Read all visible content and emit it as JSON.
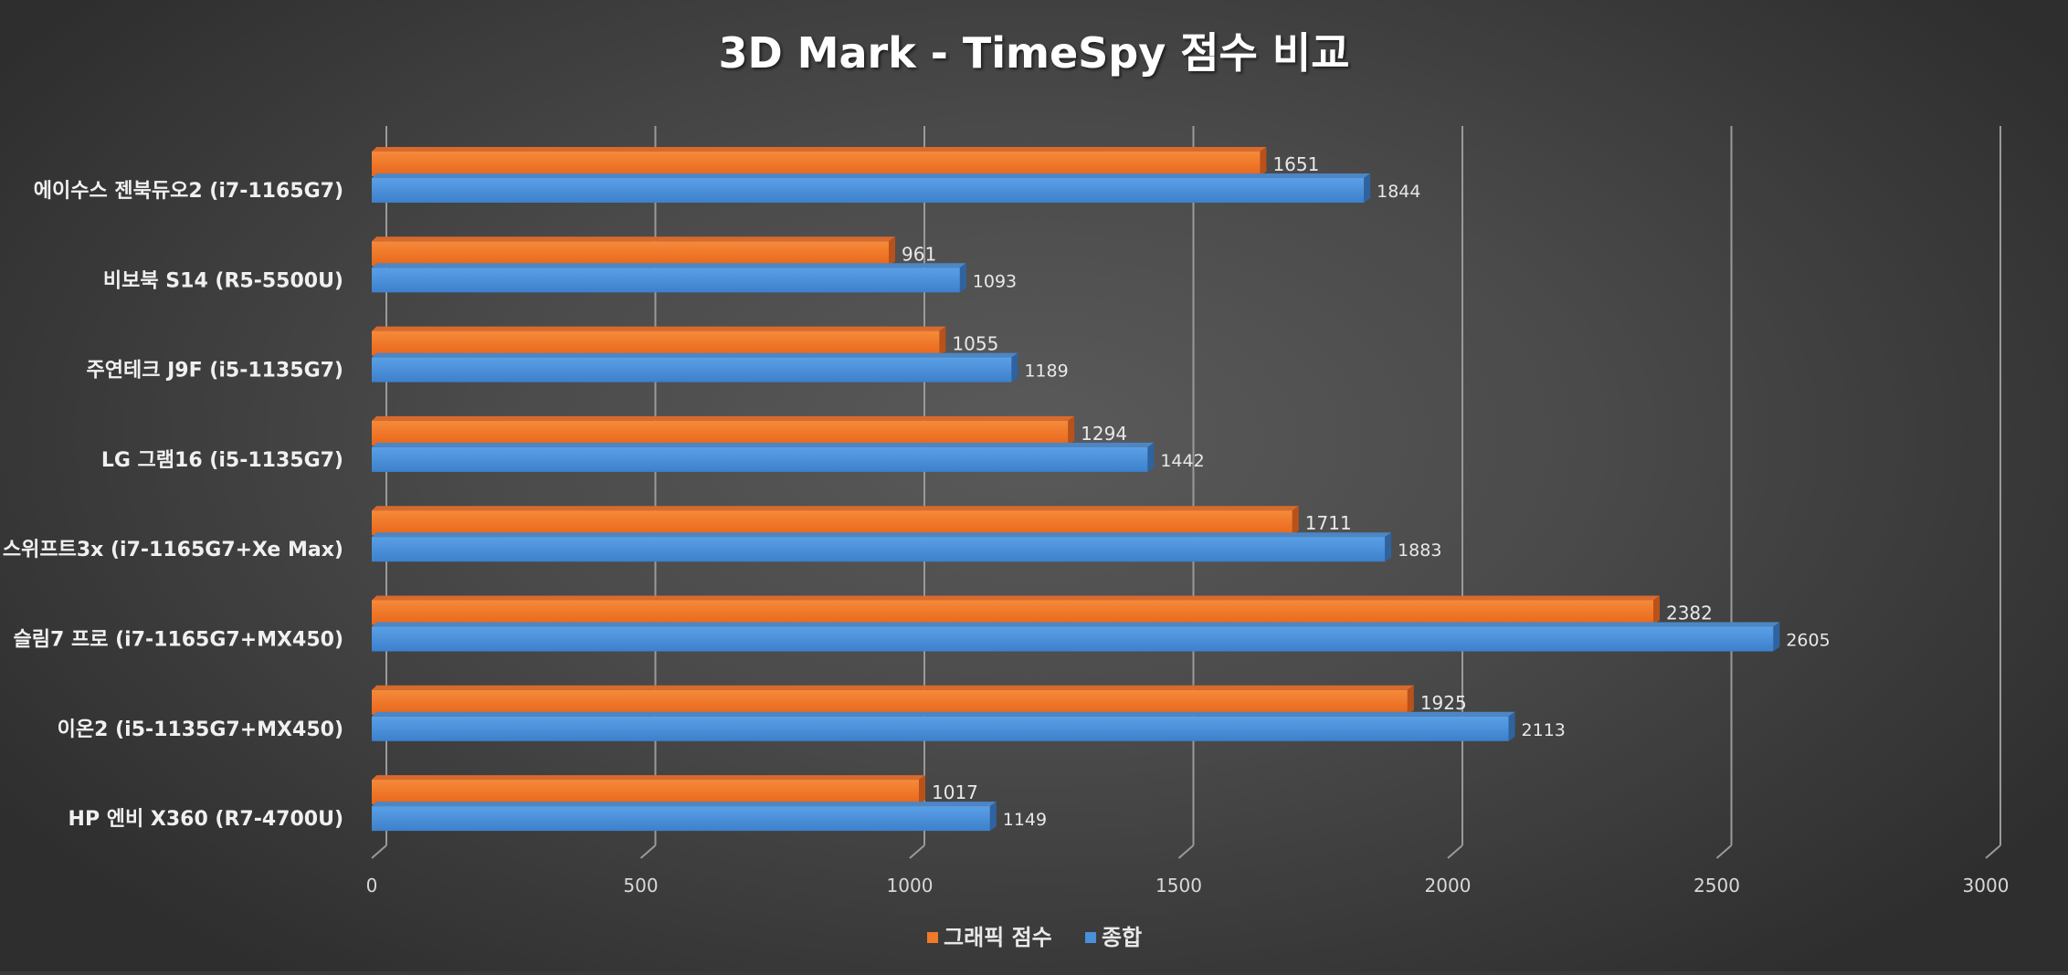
{
  "chart_data": {
    "type": "bar",
    "orientation": "horizontal",
    "style": "3d",
    "title": "3D Mark - TimeSpy 점수 비교",
    "categories": [
      "에이수스 젠북듀오2 (i7-1165G7)",
      "비보북 S14 (R5-5500U)",
      "주연테크 J9F (i5-1135G7)",
      "LG 그램16 (i5-1135G7)",
      "스위프트3x (i7-1165G7+Xe Max)",
      "슬림7 프로 (i7-1165G7+MX450)",
      "이온2 (i5-1135G7+MX450)",
      "HP 엔비 X360 (R7-4700U)"
    ],
    "series": [
      {
        "name": "그래픽 점수",
        "color": "#f07a2a",
        "values": [
          1651,
          961,
          1055,
          1294,
          1711,
          2382,
          1925,
          1017
        ]
      },
      {
        "name": "종합",
        "color": "#4a90d9",
        "values": [
          1844,
          1093,
          1189,
          1442,
          1883,
          2605,
          2113,
          1149
        ]
      }
    ],
    "xlim": [
      0,
      3000
    ],
    "xticks": [
      0,
      500,
      1000,
      1500,
      2000,
      2500,
      3000
    ],
    "grid": true,
    "legend_position": "bottom-center"
  }
}
